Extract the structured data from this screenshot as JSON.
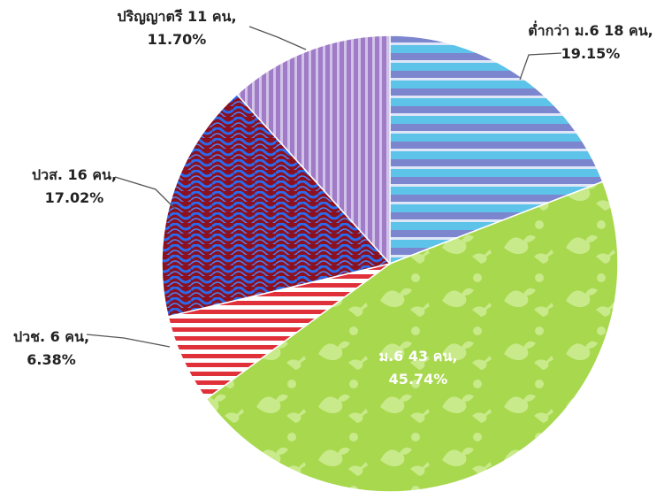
{
  "chart_data": {
    "type": "pie",
    "title": "",
    "start": "12 o'clock, clockwise",
    "slices": [
      {
        "label": "ต่ำกว่า ม.6 18 คน,",
        "value": 18,
        "percent": "19.15%",
        "color": "#5ec3e8",
        "pattern": "horizontal-stripes"
      },
      {
        "label": "ม.6 43 คน,",
        "value": 43,
        "percent": "45.74%",
        "color": "#a8d84e",
        "pattern": "dinosaurs"
      },
      {
        "label": "ปวช. 6 คน,",
        "value": 6,
        "percent": "6.38%",
        "color": "#e0303a",
        "pattern": "horizontal-stripes"
      },
      {
        "label": "ปวส. 16 คน,",
        "value": 16,
        "percent": "17.02%",
        "color": "#8b1020",
        "pattern": "blue-waves"
      },
      {
        "label": "ปริญญาตรี 11 คน,",
        "value": 11,
        "percent": "11.70%",
        "color": "#a07cc8",
        "pattern": "vertical-stripes"
      }
    ]
  }
}
